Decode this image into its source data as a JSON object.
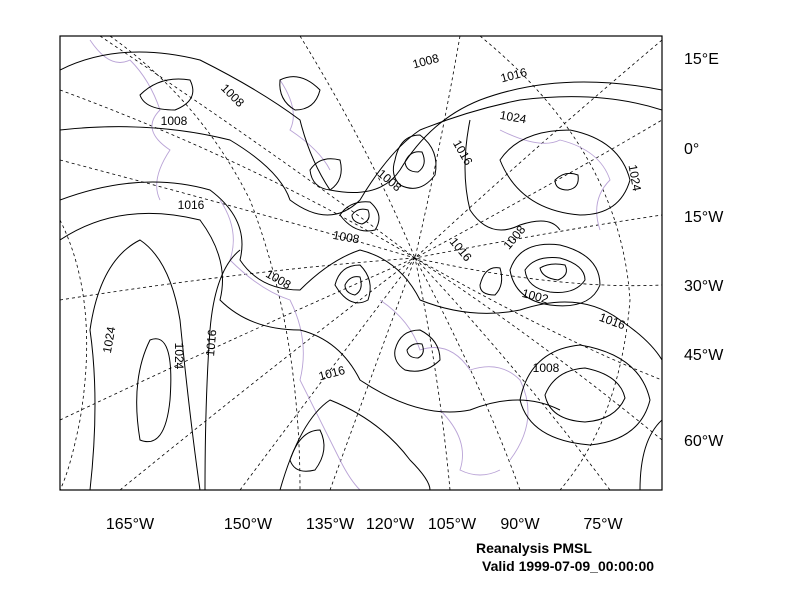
{
  "map": {
    "title": "Reanalysis PMSL",
    "subtitle": "Valid 1999-07-09_00:00:00",
    "bottom_labels": [
      "165°W",
      "150°W",
      "135°W",
      "120°W",
      "105°W",
      "90°W",
      "75°W"
    ],
    "right_labels": [
      "15°E",
      "0°",
      "15°W",
      "30°W",
      "45°W",
      "60°W"
    ],
    "contour_labels": [
      "1008",
      "1016",
      "1008",
      "1008",
      "1024",
      "1016",
      "1008",
      "1024",
      "1016",
      "1008",
      "1016",
      "1008",
      "1008",
      "1002",
      "1016",
      "1024",
      "1024",
      "1016",
      "1008",
      "1016"
    ]
  }
}
